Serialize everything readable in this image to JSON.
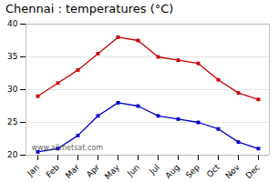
{
  "chart_data": {
    "type": "line",
    "title": "Chennai : temperatures (°C)",
    "categories": [
      "Jan",
      "Feb",
      "Mar",
      "Apr",
      "May",
      "Jun",
      "Jul",
      "Aug",
      "Sep",
      "Oct",
      "Nov",
      "Dec"
    ],
    "series": [
      {
        "color": "#cc0000",
        "marker": "square",
        "values": [
          29,
          31,
          33,
          35.5,
          38,
          37.5,
          35,
          34.5,
          34,
          31.5,
          29.5,
          28.5
        ]
      },
      {
        "color": "#0000cc",
        "marker": "square",
        "values": [
          20.5,
          21,
          23,
          26,
          28,
          27.5,
          26,
          25.5,
          25,
          24,
          22,
          21
        ]
      }
    ],
    "ylim": [
      20,
      40
    ],
    "yticks": [
      20,
      25,
      30,
      35,
      40
    ],
    "grid": true,
    "annotations": [
      "www.allmetsat.com"
    ]
  }
}
